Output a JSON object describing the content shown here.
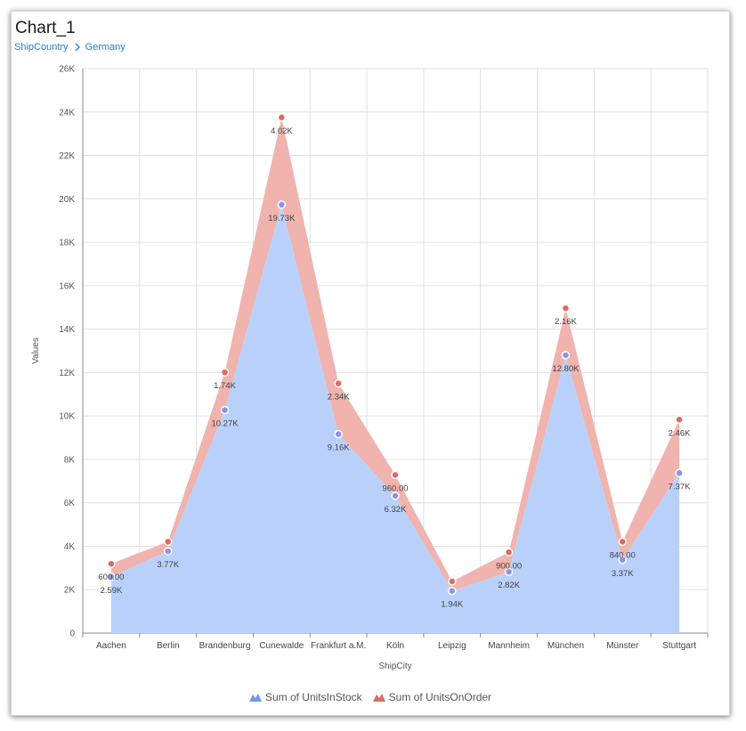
{
  "header": {
    "title": "Chart_1"
  },
  "breadcrumb": {
    "items": [
      "ShipCountry",
      "Germany"
    ]
  },
  "colors": {
    "stock_fill": "#b9d1fa",
    "stock_marker": "#8a94e6",
    "order_fill": "#f0b3ae",
    "order_marker": "#df6a60",
    "link": "#1e7ed6"
  },
  "chart_data": {
    "type": "area",
    "stacked": true,
    "xlabel": "ShipCity",
    "ylabel": "Values",
    "ylim": [
      0,
      26000
    ],
    "yticks": [
      0,
      2000,
      4000,
      6000,
      8000,
      10000,
      12000,
      14000,
      16000,
      18000,
      20000,
      22000,
      24000,
      26000
    ],
    "ytick_labels": [
      "0",
      "2K",
      "4K",
      "6K",
      "8K",
      "10K",
      "12K",
      "14K",
      "16K",
      "18K",
      "20K",
      "22K",
      "24K",
      "26K"
    ],
    "grid": true,
    "legend_position": "bottom",
    "categories": [
      "Aachen",
      "Berlin",
      "Brandenburg",
      "Cunewalde",
      "Frankfurt a.M.",
      "Köln",
      "Leipzig",
      "Mannheim",
      "München",
      "Münster",
      "Stuttgart"
    ],
    "series": [
      {
        "name": "Sum of UnitsInStock",
        "values": [
          2590,
          3770,
          10270,
          19730,
          9160,
          6320,
          1940,
          2820,
          12800,
          3370,
          7370
        ],
        "labels": [
          "2.59K",
          "3.77K",
          "10.27K",
          "19.73K",
          "9.16K",
          "6.32K",
          "1.94K",
          "2.82K",
          "12.80K",
          "3.37K",
          "7.37K"
        ]
      },
      {
        "name": "Sum of UnitsOnOrder",
        "values": [
          600,
          440,
          1740,
          4020,
          2340,
          960,
          440,
          900,
          2160,
          840,
          2460
        ],
        "labels": [
          "600.00",
          "",
          "1.74K",
          "4.02K",
          "2.34K",
          "960.00",
          "",
          "900.00",
          "2.16K",
          "840.00",
          "2.46K"
        ]
      }
    ]
  }
}
